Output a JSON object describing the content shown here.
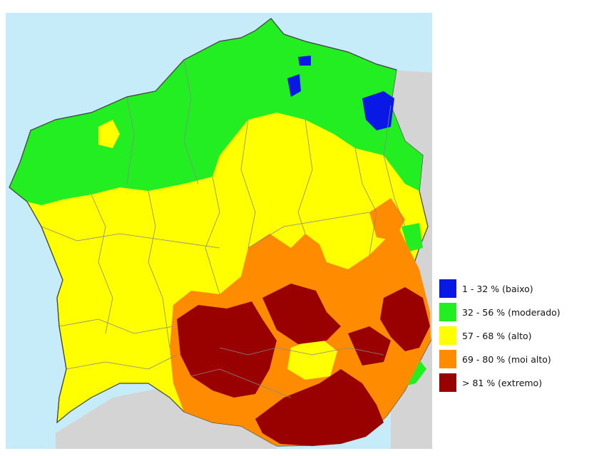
{
  "map": {
    "colors": {
      "sea": "#c6ecf9",
      "land_outside": "#d4d4d4",
      "boundary": "#888888",
      "coast": "#444444"
    }
  },
  "legend": {
    "items": [
      {
        "range": "1 - 32 % (baixo)",
        "color": "#0a18e6"
      },
      {
        "range": "32 - 56 % (moderado)",
        "color": "#22ee22"
      },
      {
        "range": "57 - 68 % (alto)",
        "color": "#ffff00"
      },
      {
        "range": "69 - 80 % (moi alto)",
        "color": "#ff8c00"
      },
      {
        "range": "> 81 % (extremo)",
        "color": "#990000"
      }
    ]
  }
}
